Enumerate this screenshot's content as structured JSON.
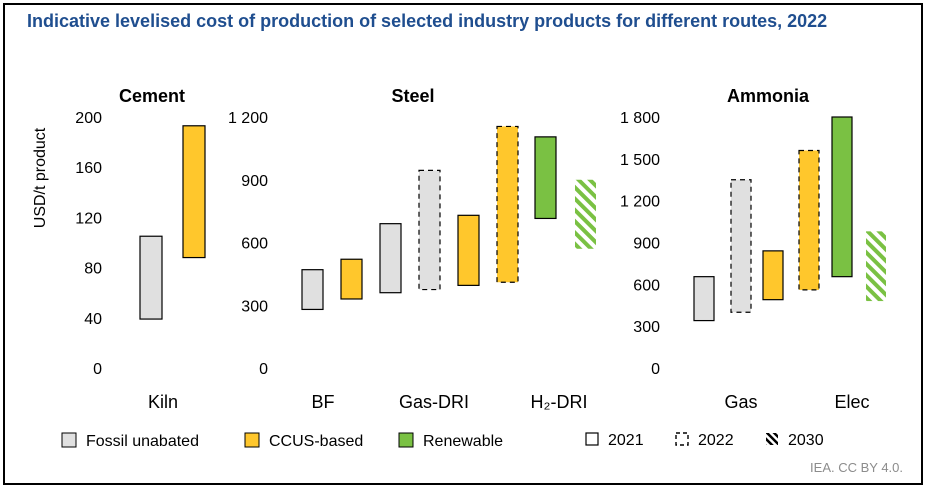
{
  "title": "Indicative levelised cost of production of selected industry products for different routes, 2022",
  "source": "IEA. CC BY 4.0.",
  "colors": {
    "fossil": "#e0e0e0",
    "ccus": "#ffc72c",
    "renewable": "#7ac143",
    "text": "#000000",
    "title": "#1f4e8f",
    "source": "#8c8c8c"
  },
  "legend": {
    "categories": [
      {
        "label": "Fossil unabated",
        "key": "fossil"
      },
      {
        "label": "CCUS-based",
        "key": "ccus"
      },
      {
        "label": "Renewable",
        "key": "renewable"
      }
    ],
    "years": [
      {
        "label": "2021",
        "style": "solid"
      },
      {
        "label": "2022",
        "style": "dashed"
      },
      {
        "label": "2030",
        "style": "hatched"
      }
    ]
  },
  "chart_data": [
    {
      "type": "floating-bar",
      "title": "Cement",
      "ylabel": "USD/t product",
      "ylim": [
        0,
        200
      ],
      "yticks": [
        0,
        40,
        80,
        120,
        160,
        200
      ],
      "ytick_labels": [
        "0",
        "40",
        "80",
        "120",
        "160",
        "200"
      ],
      "groups": [
        "Kiln"
      ],
      "bars": [
        {
          "group": "Kiln",
          "category": "fossil",
          "year": "2021",
          "low": 39,
          "high": 105
        },
        {
          "group": "Kiln",
          "category": "ccus",
          "year": "2021",
          "low": 88,
          "high": 193
        }
      ]
    },
    {
      "type": "floating-bar",
      "title": "Steel",
      "ylabel": "",
      "ylim": [
        0,
        1200
      ],
      "yticks": [
        0,
        300,
        600,
        900,
        1200
      ],
      "ytick_labels": [
        "0",
        "300",
        "600",
        "900",
        "1 200"
      ],
      "groups": [
        "BF",
        "Gas-DRI",
        "H₂-DRI"
      ],
      "bars": [
        {
          "group": "BF",
          "category": "fossil",
          "year": "2021",
          "low": 280,
          "high": 470
        },
        {
          "group": "BF",
          "category": "ccus",
          "year": "2021",
          "low": 330,
          "high": 520
        },
        {
          "group": "Gas-DRI",
          "category": "fossil",
          "year": "2021",
          "low": 360,
          "high": 690
        },
        {
          "group": "Gas-DRI",
          "category": "fossil",
          "year": "2022",
          "low": 375,
          "high": 945
        },
        {
          "group": "Gas-DRI",
          "category": "ccus",
          "year": "2021",
          "low": 395,
          "high": 730
        },
        {
          "group": "Gas-DRI",
          "category": "ccus",
          "year": "2022",
          "low": 410,
          "high": 1155
        },
        {
          "group": "H₂-DRI",
          "category": "renewable",
          "year": "2021",
          "low": 715,
          "high": 1105
        },
        {
          "group": "H₂-DRI",
          "category": "renewable",
          "year": "2030",
          "low": 570,
          "high": 900
        }
      ]
    },
    {
      "type": "floating-bar",
      "title": "Ammonia",
      "ylabel": "",
      "ylim": [
        0,
        1800
      ],
      "yticks": [
        0,
        300,
        600,
        900,
        1200,
        1500,
        1800
      ],
      "ytick_labels": [
        "0",
        "300",
        "600",
        "900",
        "1 200",
        "1 500",
        "1 800"
      ],
      "groups": [
        "Gas",
        "Elec"
      ],
      "bars": [
        {
          "group": "Gas",
          "category": "fossil",
          "year": "2021",
          "low": 340,
          "high": 655
        },
        {
          "group": "Gas",
          "category": "fossil",
          "year": "2022",
          "low": 400,
          "high": 1350
        },
        {
          "group": "Gas",
          "category": "ccus",
          "year": "2021",
          "low": 490,
          "high": 840
        },
        {
          "group": "Gas",
          "category": "ccus",
          "year": "2022",
          "low": 560,
          "high": 1560
        },
        {
          "group": "Elec",
          "category": "renewable",
          "year": "2021",
          "low": 655,
          "high": 1800
        },
        {
          "group": "Elec",
          "category": "renewable",
          "year": "2030",
          "low": 480,
          "high": 980
        }
      ]
    }
  ]
}
